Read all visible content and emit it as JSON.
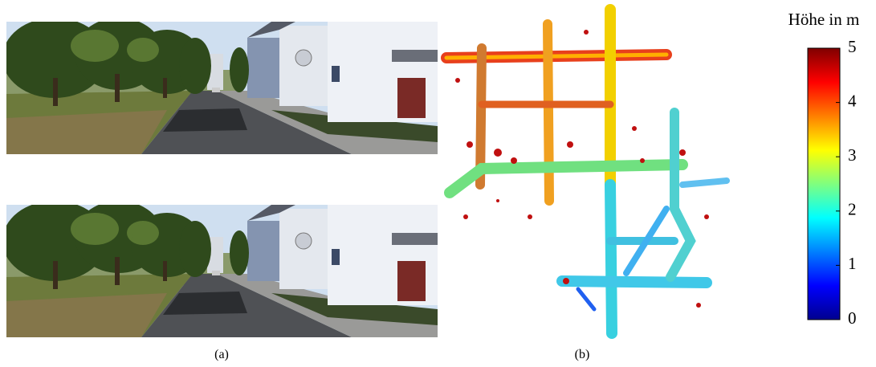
{
  "captions": {
    "a": "(a)",
    "b": "(b)"
  },
  "colorbar": {
    "label": "Höhe in m",
    "lim": [
      0,
      5
    ],
    "ticks": [
      0,
      1,
      2,
      3,
      4,
      5
    ],
    "colormap": "jet"
  }
}
